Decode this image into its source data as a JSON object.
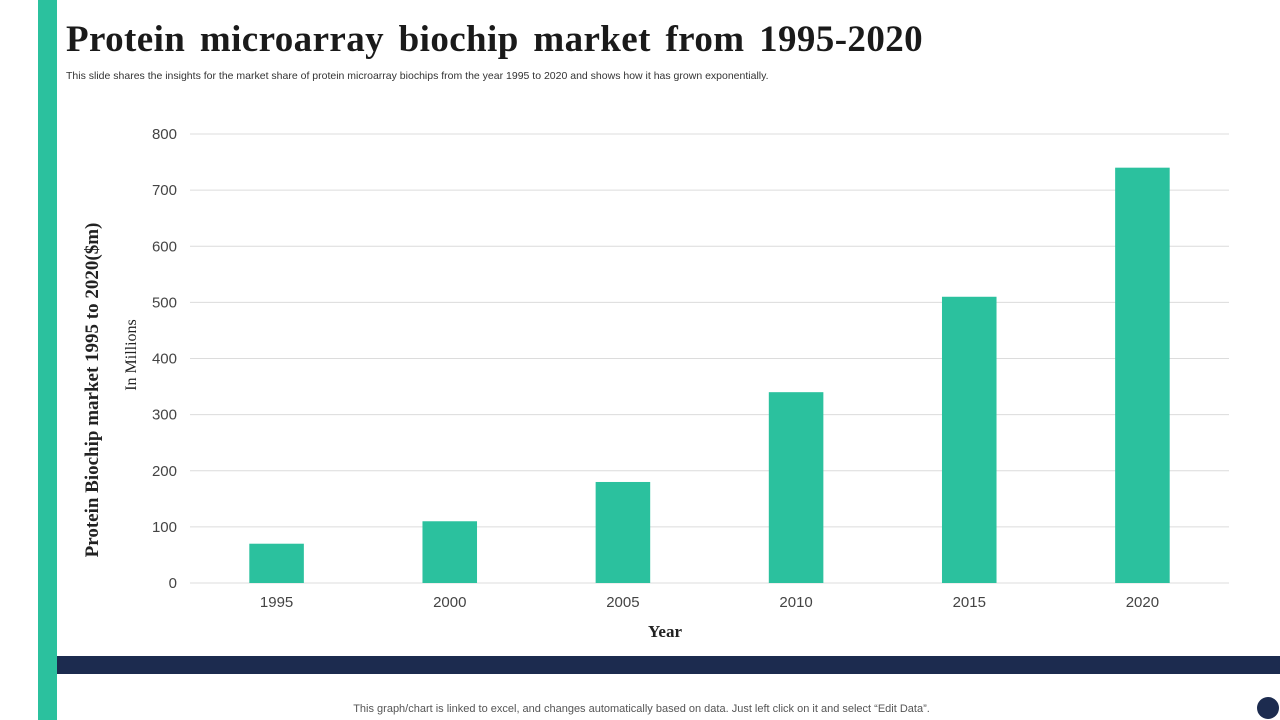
{
  "colors": {
    "accent": "#2bc19e",
    "navy": "#1c2b4f",
    "grid": "#dcdcdc"
  },
  "slide": {
    "title": "Protein microarray biochip market from 1995-2020",
    "subtitle": "This slide shares the insights for the market share of protein microarray biochips from the year  1995 to 2020 and shows how it has grown exponentially.",
    "footer_note": "This graph/chart is linked to excel,  and changes automatically based on data. Just left click on it and select “Edit Data”."
  },
  "chart_data": {
    "type": "bar",
    "title": "",
    "categories": [
      "1995",
      "2000",
      "2005",
      "2010",
      "2015",
      "2020"
    ],
    "values": [
      70,
      110,
      180,
      340,
      510,
      740
    ],
    "xlabel": "Year",
    "ylabel": "Protein Biochip market 1995 to 2020($m)",
    "ylabel_secondary": "In Millions",
    "ylim": [
      0,
      800
    ],
    "yticks": [
      0,
      100,
      200,
      300,
      400,
      500,
      600,
      700,
      800
    ],
    "grid": true,
    "legend": "none"
  }
}
